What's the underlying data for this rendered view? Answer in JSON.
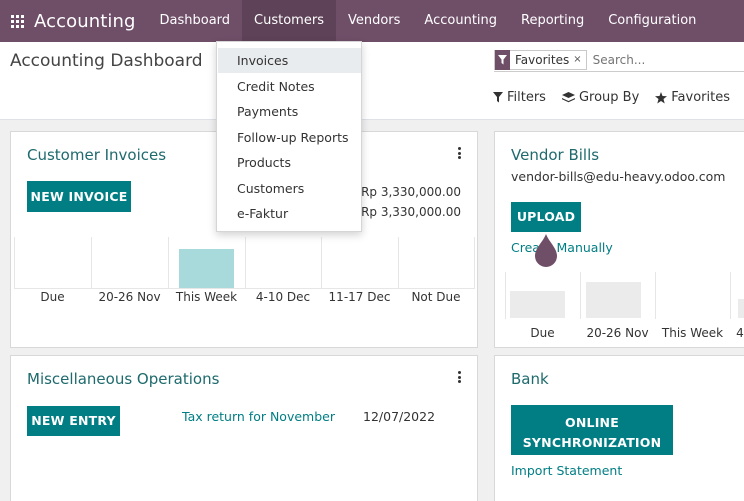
{
  "nav": {
    "brand": "Accounting",
    "items": [
      {
        "label": "Dashboard"
      },
      {
        "label": "Customers"
      },
      {
        "label": "Vendors"
      },
      {
        "label": "Accounting"
      },
      {
        "label": "Reporting"
      },
      {
        "label": "Configuration"
      }
    ]
  },
  "control_panel": {
    "title": "Accounting Dashboard",
    "facet": "Favorites",
    "facet_remove": "×",
    "search_placeholder": "Search...",
    "filters_label": "Filters",
    "groupby_label": "Group By",
    "favorites_label": "Favorites"
  },
  "customers_menu": {
    "items": [
      {
        "label": "Invoices"
      },
      {
        "label": "Credit Notes"
      },
      {
        "label": "Payments"
      },
      {
        "label": "Follow-up Reports"
      },
      {
        "label": "Products"
      },
      {
        "label": "Customers"
      },
      {
        "label": "e-Faktur"
      }
    ]
  },
  "customer_invoices": {
    "title": "Customer Invoices",
    "button": "NEW INVOICE",
    "amounts": [
      "Rp 3,330,000.00",
      "Rp 3,330,000.00"
    ],
    "graph_labels": [
      "Due",
      "20-26 Nov",
      "This Week",
      "4-10 Dec",
      "11-17 Dec",
      "Not Due"
    ],
    "graph_values": [
      0,
      0,
      1,
      0,
      0,
      0
    ]
  },
  "vendor_bills": {
    "title": "Vendor Bills",
    "email": "vendor-bills@edu-heavy.odoo.com",
    "button": "UPLOAD",
    "create_link": "Create Manually",
    "graph_labels": [
      "Due",
      "20-26 Nov",
      "This Week",
      "4"
    ]
  },
  "misc_operations": {
    "title": "Miscellaneous Operations",
    "button": "NEW ENTRY",
    "task_link": "Tax return for November",
    "task_date": "12/07/2022"
  },
  "bank": {
    "title": "Bank",
    "button_line1": "ONLINE",
    "button_line2": "SYNCHRONIZATION",
    "import_link": "Import Statement"
  },
  "colors": {
    "navbar": "#6f4e68",
    "accent": "#017e84",
    "title": "#1e6a6d",
    "bar": "#a8dadc"
  }
}
